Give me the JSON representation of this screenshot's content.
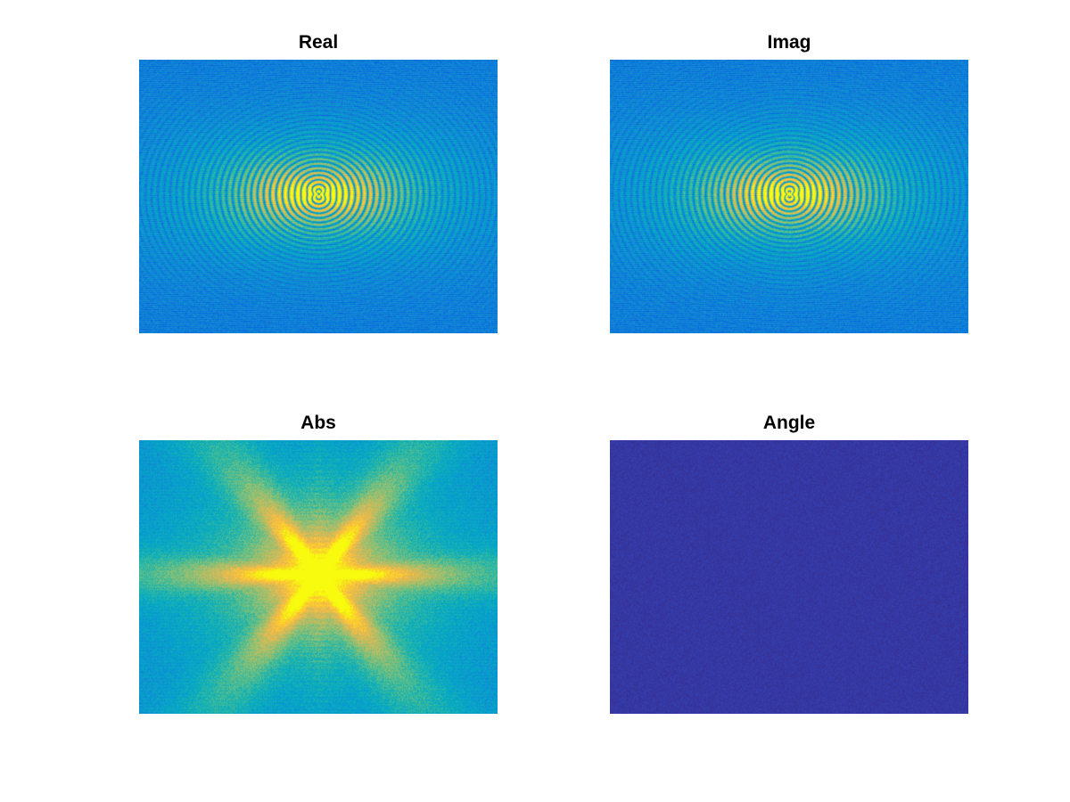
{
  "figure": {
    "subplots": [
      {
        "title": "Real",
        "kind": "ring",
        "colormap": "parula"
      },
      {
        "title": "Imag",
        "kind": "ring",
        "colormap": "parula"
      },
      {
        "title": "Abs",
        "kind": "star",
        "colormap": "parula"
      },
      {
        "title": "Angle",
        "kind": "flat",
        "colormap": "parula"
      }
    ]
  },
  "chart_data": [
    {
      "type": "heatmap",
      "title": "Real",
      "xlabel": "",
      "ylabel": "",
      "axes_visible": false,
      "colormap": "parula",
      "description_level": "dominant low-dark-blue field with bright yellow ring pattern concentrated near center"
    },
    {
      "type": "heatmap",
      "title": "Imag",
      "xlabel": "",
      "ylabel": "",
      "axes_visible": false,
      "colormap": "parula",
      "description_level": "dominant low-dark-blue field with bright yellow ring pattern concentrated near center"
    },
    {
      "type": "heatmap",
      "title": "Abs",
      "xlabel": "",
      "ylabel": "",
      "axes_visible": false,
      "colormap": "parula",
      "description_level": "medium blue field with bright yellow star-shaped peak at center"
    },
    {
      "type": "heatmap",
      "title": "Angle",
      "xlabel": "",
      "ylabel": "",
      "axes_visible": false,
      "colormap": "parula",
      "description_level": "nearly uniform dark indigo"
    }
  ]
}
